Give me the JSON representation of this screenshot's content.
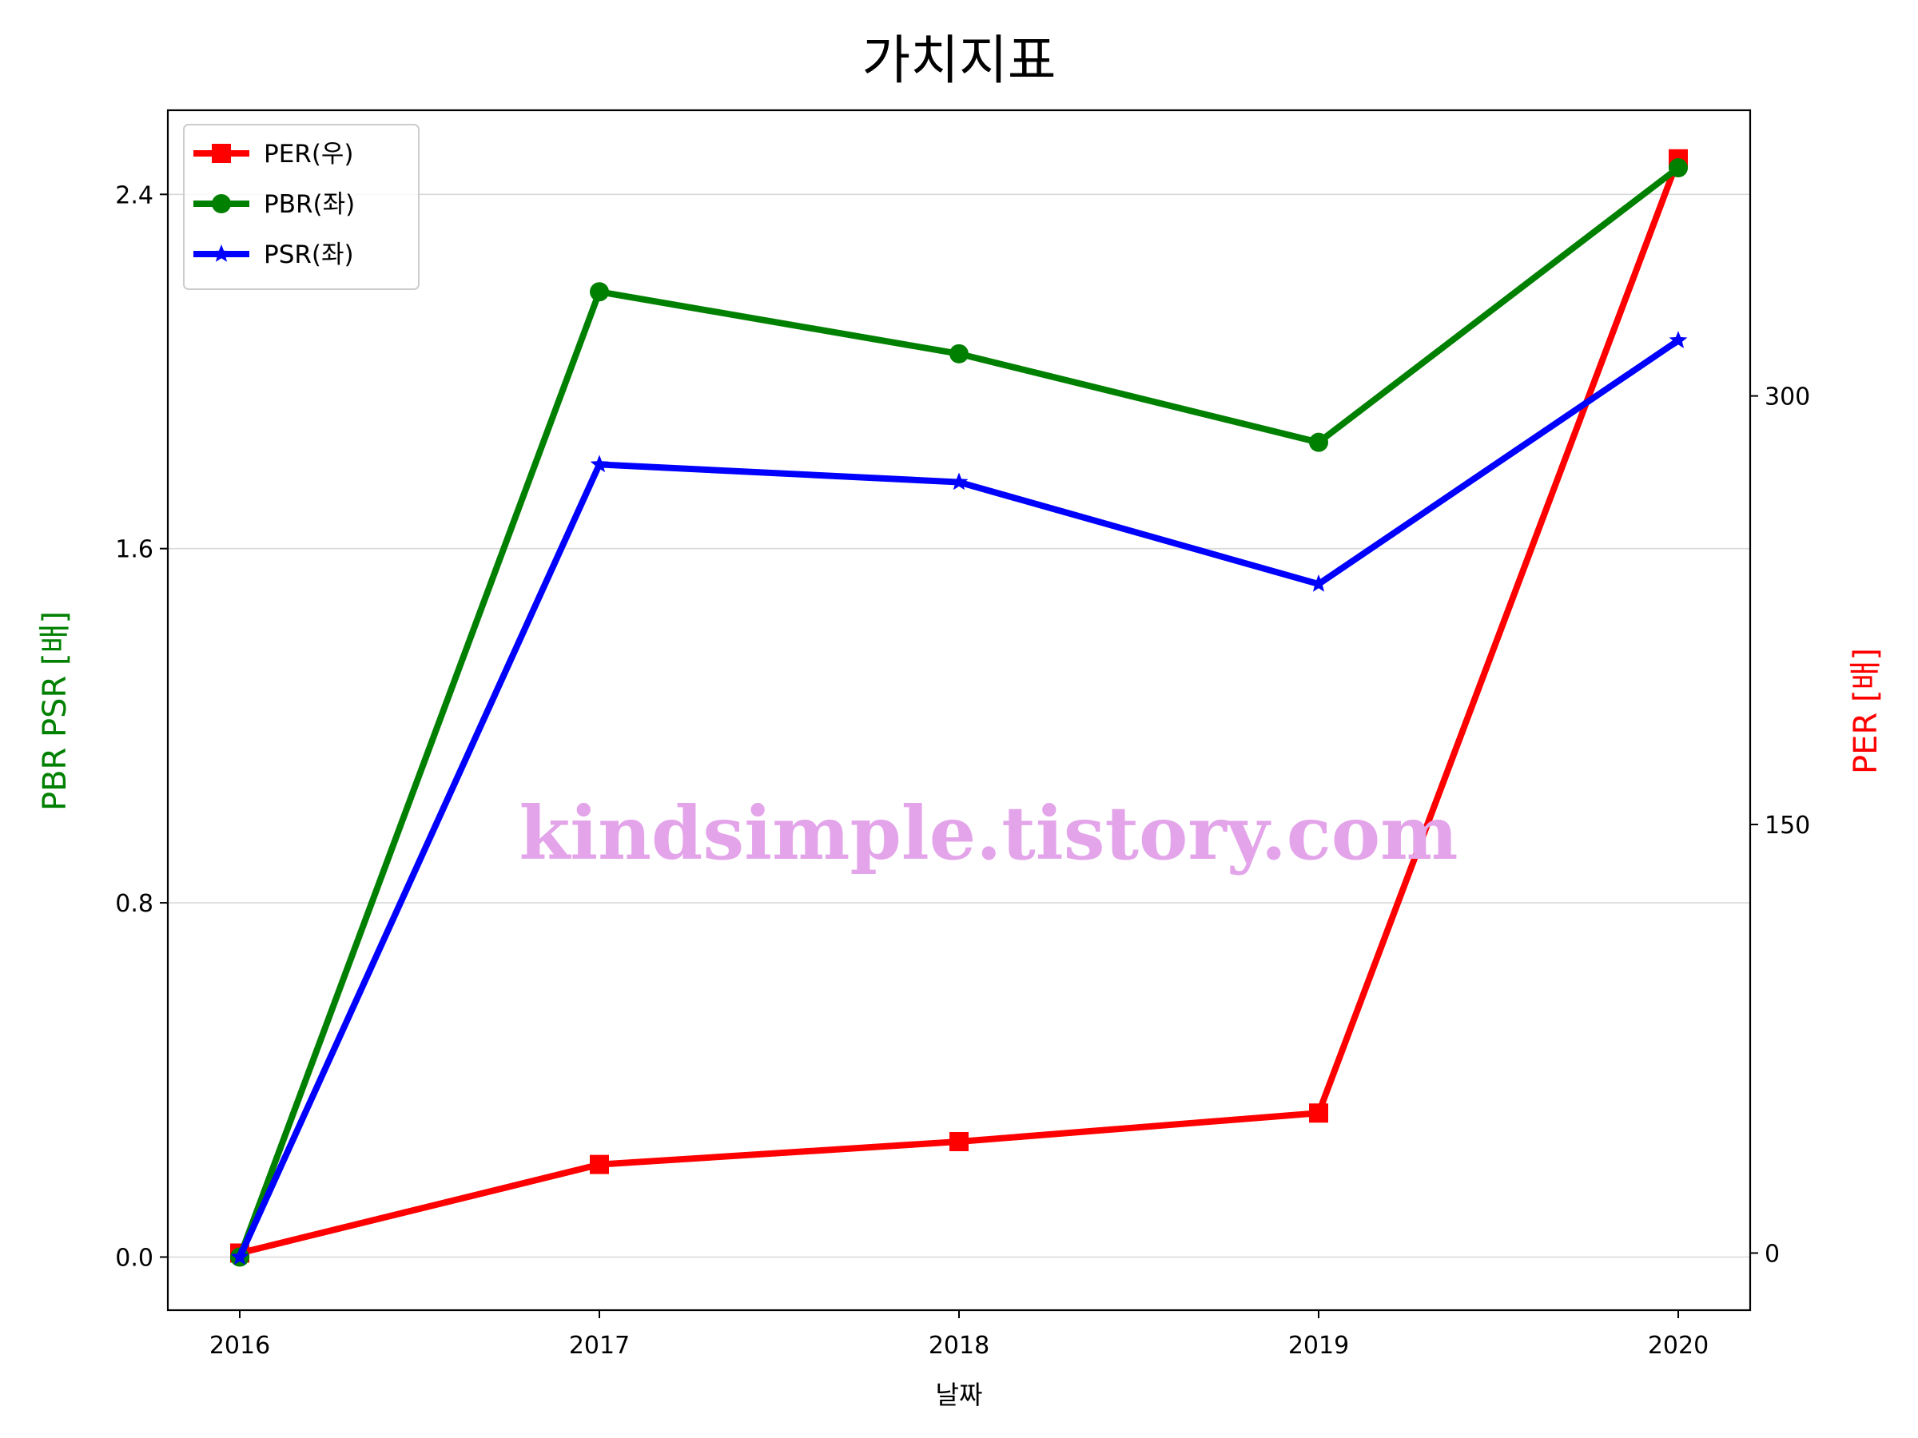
{
  "chart_data": {
    "type": "line",
    "title": "가치지표",
    "xlabel": "날짜",
    "ylabel_left": "PBR PSR [배]",
    "ylabel_right": "PER [배]",
    "categories": [
      "2016",
      "2017",
      "2018",
      "2019",
      "2020"
    ],
    "ylim_left": [
      -0.12,
      2.59
    ],
    "yticks_left": [
      "0.0",
      "0.8",
      "1.6",
      "2.4"
    ],
    "ylim_right": [
      -20,
      400
    ],
    "yticks_right": [
      "0",
      "150",
      "300"
    ],
    "grid": "horizontal",
    "legend_position": "top-left",
    "series": [
      {
        "name": "PER(우)",
        "axis": "right",
        "color": "#ff0000",
        "marker": "square",
        "values": [
          0,
          31,
          39,
          49,
          383
        ]
      },
      {
        "name": "PBR(좌)",
        "axis": "left",
        "color": "#008000",
        "marker": "circle",
        "values": [
          0,
          2.18,
          2.04,
          1.84,
          2.46
        ]
      },
      {
        "name": "PSR(좌)",
        "axis": "left",
        "color": "#0000ff",
        "marker": "star",
        "values": [
          0,
          1.79,
          1.75,
          1.52,
          2.07
        ]
      }
    ],
    "watermark": "kindsimple.tistory.com"
  }
}
